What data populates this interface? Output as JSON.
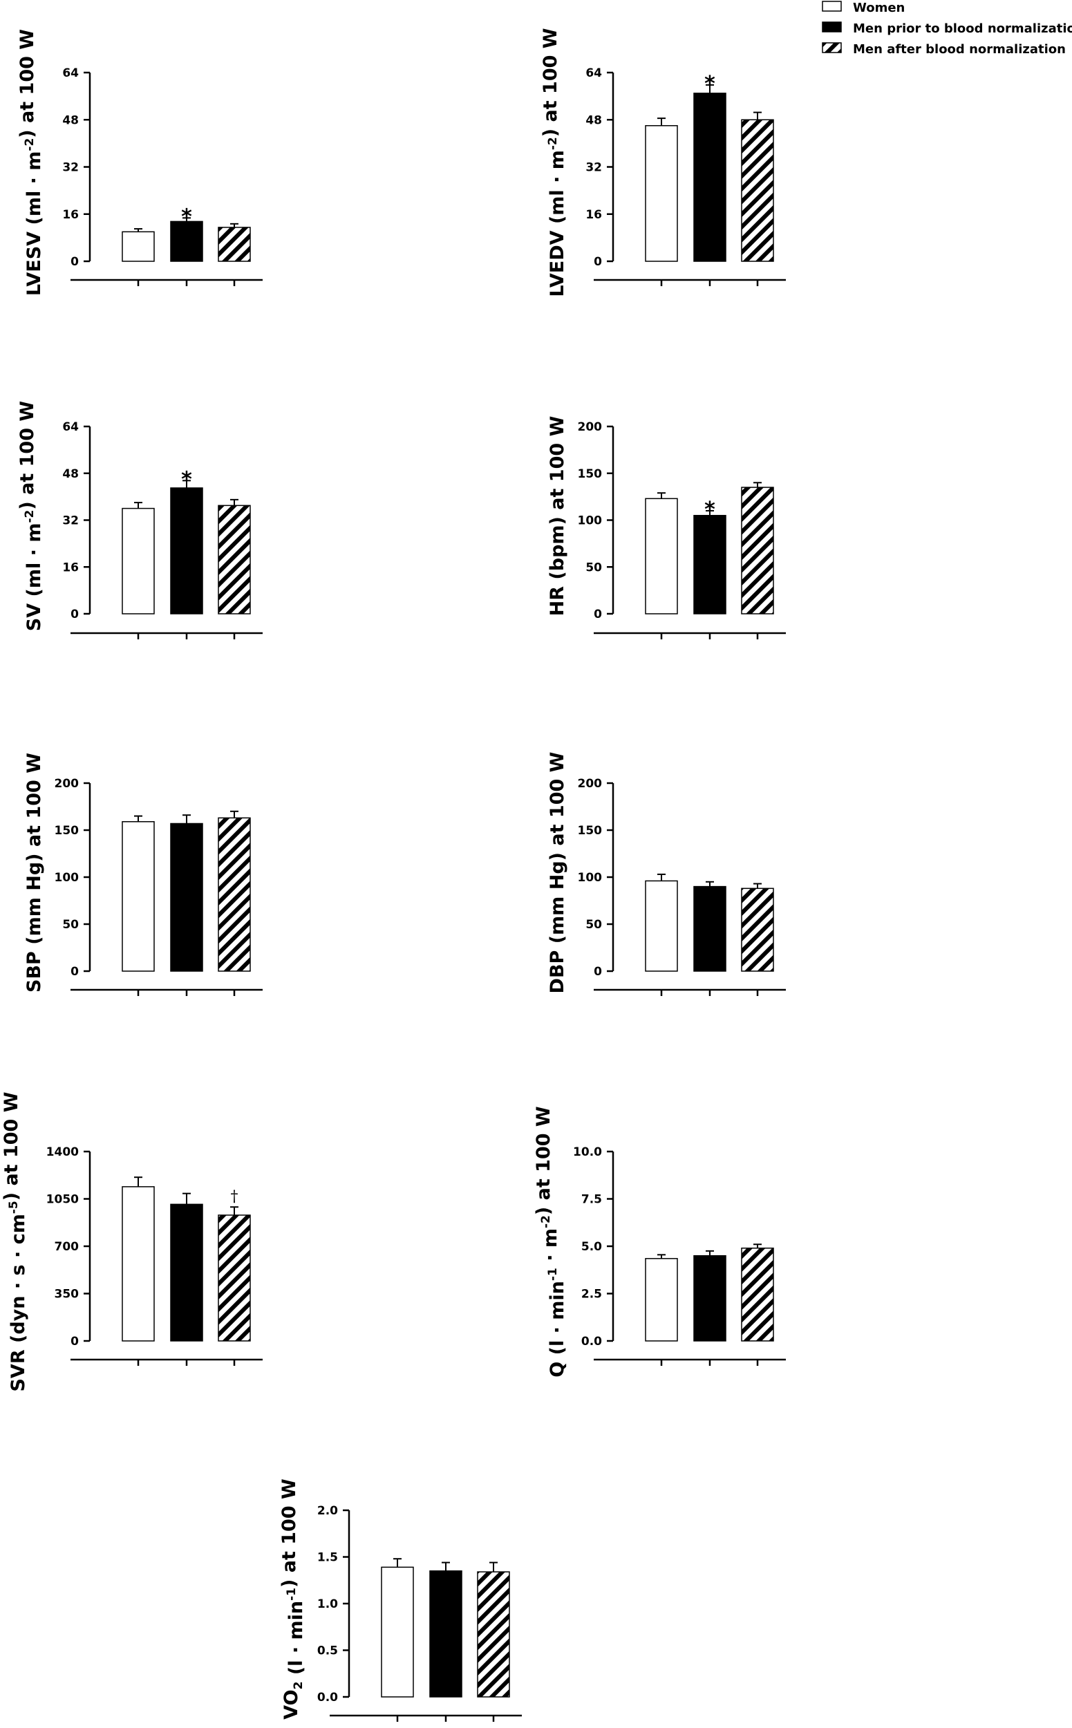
{
  "legend": [
    {
      "label": "Women",
      "style": "white"
    },
    {
      "label": "Men prior to blood normalization",
      "style": "black"
    },
    {
      "label": "Men after blood normalization",
      "style": "hatched"
    }
  ],
  "colors": {
    "ink": "#000000",
    "paper": "#ffffff"
  },
  "chart_data": [
    {
      "id": "lvesv",
      "type": "bar",
      "ylabel": "LVESV (ml · m⁻²) at 100 W",
      "ylim": [
        0,
        64
      ],
      "yticks": [
        "0",
        "16",
        "32",
        "48",
        "64"
      ],
      "categories": [
        "Women",
        "Men prior to blood normalization",
        "Men after blood normalization"
      ],
      "values": [
        10,
        13.5,
        11.5
      ],
      "errors": [
        1,
        1.2,
        1.2
      ],
      "annotations": [
        "",
        "*",
        ""
      ]
    },
    {
      "id": "lvedv",
      "type": "bar",
      "ylabel": "LVEDV (ml · m⁻²) at 100 W",
      "ylim": [
        0,
        64
      ],
      "yticks": [
        "0",
        "16",
        "32",
        "48",
        "64"
      ],
      "categories": [
        "Women",
        "Men prior to blood normalization",
        "Men after blood normalization"
      ],
      "values": [
        46,
        57,
        48
      ],
      "errors": [
        2.5,
        2.8,
        2.5
      ],
      "annotations": [
        "",
        "*",
        ""
      ]
    },
    {
      "id": "sv",
      "type": "bar",
      "ylabel": "SV (ml · m⁻²) at 100 W",
      "ylim": [
        0,
        64
      ],
      "yticks": [
        "0",
        "16",
        "32",
        "48",
        "64"
      ],
      "categories": [
        "Women",
        "Men prior to blood normalization",
        "Men after blood normalization"
      ],
      "values": [
        36,
        43,
        37
      ],
      "errors": [
        2,
        2.5,
        2
      ],
      "annotations": [
        "",
        "*",
        ""
      ]
    },
    {
      "id": "hr",
      "type": "bar",
      "ylabel": "HR (bpm) at 100 W",
      "ylim": [
        0,
        200
      ],
      "yticks": [
        "0",
        "50",
        "100",
        "150",
        "200"
      ],
      "categories": [
        "Women",
        "Men prior to blood normalization",
        "Men after blood normalization"
      ],
      "values": [
        123,
        105,
        135
      ],
      "errors": [
        6,
        5,
        5
      ],
      "annotations": [
        "",
        "*",
        ""
      ]
    },
    {
      "id": "sbp",
      "type": "bar",
      "ylabel": "SBP (mm Hg) at 100 W",
      "ylim": [
        0,
        200
      ],
      "yticks": [
        "0",
        "50",
        "100",
        "150",
        "200"
      ],
      "categories": [
        "Women",
        "Men prior to blood normalization",
        "Men after blood normalization"
      ],
      "values": [
        159,
        157,
        163
      ],
      "errors": [
        6,
        9,
        7
      ],
      "annotations": [
        "",
        "",
        ""
      ]
    },
    {
      "id": "dbp",
      "type": "bar",
      "ylabel": "DBP (mm Hg) at 100 W",
      "ylim": [
        0,
        200
      ],
      "yticks": [
        "0",
        "50",
        "100",
        "150",
        "200"
      ],
      "categories": [
        "Women",
        "Men prior to blood normalization",
        "Men after blood normalization"
      ],
      "values": [
        96,
        90,
        88
      ],
      "errors": [
        7,
        5,
        5
      ],
      "annotations": [
        "",
        "",
        ""
      ]
    },
    {
      "id": "svr",
      "type": "bar",
      "ylabel": "SVR (dyn · s · cm⁻⁵) at 100 W",
      "ylim": [
        0,
        1400
      ],
      "yticks": [
        "0",
        "350",
        "700",
        "1050",
        "1400"
      ],
      "categories": [
        "Women",
        "Men prior to blood normalization",
        "Men after blood normalization"
      ],
      "values": [
        1140,
        1010,
        930
      ],
      "errors": [
        70,
        80,
        60
      ],
      "annotations": [
        "",
        "",
        "†"
      ]
    },
    {
      "id": "q",
      "type": "bar",
      "ylabel": "Q (l · min⁻¹ · m⁻²) at 100 W",
      "ylim": [
        0,
        10
      ],
      "yticks": [
        "0.0",
        "2.5",
        "5.0",
        "7.5",
        "10.0"
      ],
      "categories": [
        "Women",
        "Men prior to blood normalization",
        "Men after blood normalization"
      ],
      "values": [
        4.35,
        4.5,
        4.9
      ],
      "errors": [
        0.2,
        0.25,
        0.2
      ],
      "annotations": [
        "",
        "",
        ""
      ]
    },
    {
      "id": "vo2",
      "type": "bar",
      "ylabel": "VO₂ (l · min⁻¹) at 100 W",
      "ylim": [
        0,
        2
      ],
      "yticks": [
        "0.0",
        "0.5",
        "1.0",
        "1.5",
        "2.0"
      ],
      "categories": [
        "Women",
        "Men prior to blood normalization",
        "Men after blood normalization"
      ],
      "values": [
        1.39,
        1.35,
        1.34
      ],
      "errors": [
        0.09,
        0.09,
        0.1
      ],
      "annotations": [
        "",
        "",
        ""
      ]
    }
  ]
}
